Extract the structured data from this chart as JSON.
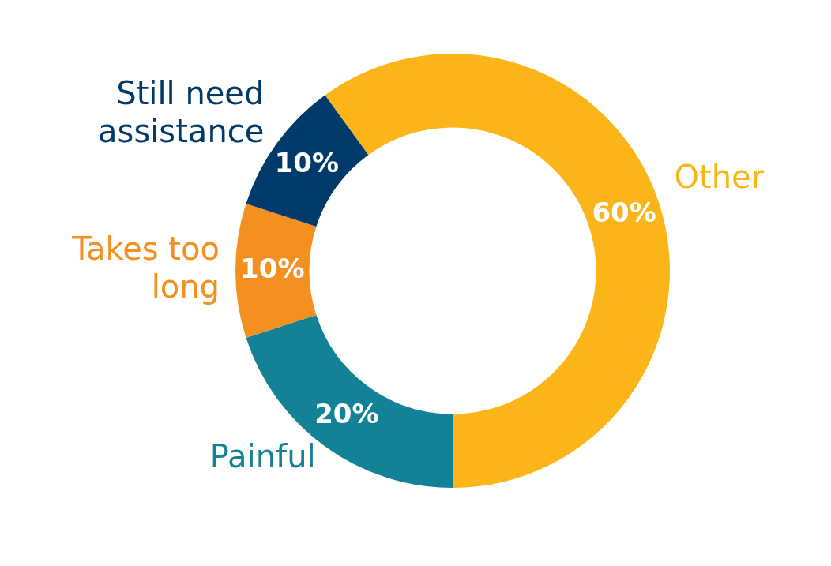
{
  "chart_data": {
    "type": "donut",
    "categories": [
      "Other",
      "Painful",
      "Takes too long",
      "Still need assistance"
    ],
    "values": [
      60,
      20,
      10,
      10
    ],
    "value_labels": [
      "60%",
      "20%",
      "10%",
      "10%"
    ],
    "colors": [
      "#fbb519",
      "#138196",
      "#f39020",
      "#003a6b"
    ],
    "legend": false
  }
}
